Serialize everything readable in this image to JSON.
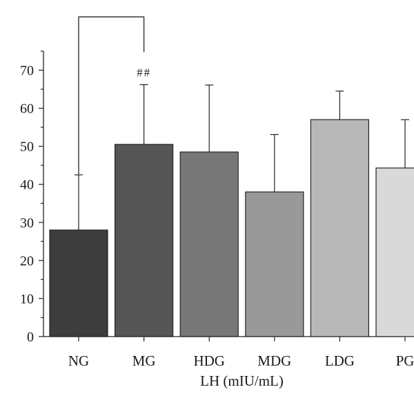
{
  "chart_data": {
    "type": "bar",
    "xlabel": "LH (mIU/mL)",
    "ylabel": "",
    "ylim": [
      0,
      75
    ],
    "yticks": [
      0,
      10,
      20,
      30,
      40,
      50,
      60,
      70
    ],
    "y_minor_tick_step": 5,
    "categories": [
      "NG",
      "MG",
      "HDG",
      "MDG",
      "LDG",
      "PG"
    ],
    "values": [
      28,
      50.5,
      48.5,
      38,
      57,
      44.3
    ],
    "error_upper": [
      42.5,
      66.2,
      66.1,
      53.1,
      64.5,
      57
    ],
    "colors": [
      "#3d3d3d",
      "#555555",
      "#777777",
      "#999999",
      "#b8b8b8",
      "#d9d9d9"
    ],
    "significance": {
      "from": "NG",
      "to": "MG",
      "label": "##",
      "bracket_value": 84
    }
  }
}
